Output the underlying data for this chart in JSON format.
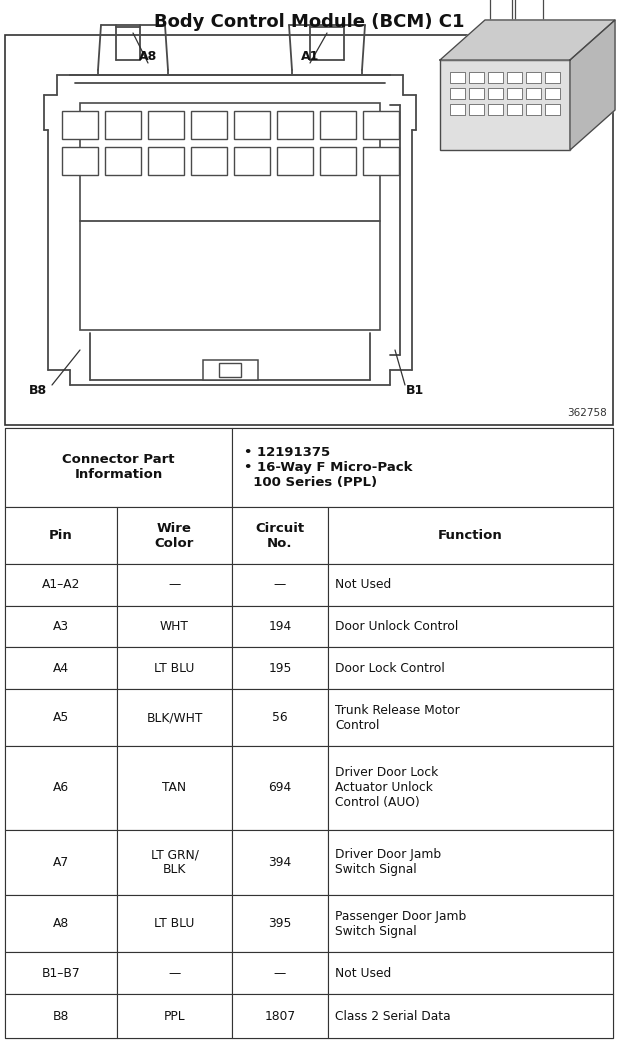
{
  "title": "Body Control Module (BCM) C1",
  "title_fontsize": 13,
  "title_fontweight": "bold",
  "background_color": "#ffffff",
  "ref_number": "362758",
  "connector_info_left": "Connector Part\nInformation",
  "connector_info_right": "• 12191375\n• 16-Way F Micro-Pack\n  100 Series (PPL)",
  "table_headers": [
    "Pin",
    "Wire\nColor",
    "Circuit\nNo.",
    "Function"
  ],
  "table_rows": [
    [
      "A1–A2",
      "—",
      "—",
      "Not Used"
    ],
    [
      "A3",
      "WHT",
      "194",
      "Door Unlock Control"
    ],
    [
      "A4",
      "LT BLU",
      "195",
      "Door Lock Control"
    ],
    [
      "A5",
      "BLK/WHT",
      "56",
      "Trunk Release Motor\nControl"
    ],
    [
      "A6",
      "TAN",
      "694",
      "Driver Door Lock\nActuator Unlock\nControl (AUO)"
    ],
    [
      "A7",
      "LT GRN/\nBLK",
      "394",
      "Driver Door Jamb\nSwitch Signal"
    ],
    [
      "A8",
      "LT BLU",
      "395",
      "Passenger Door Jamb\nSwitch Signal"
    ],
    [
      "B1–B7",
      "—",
      "—",
      "Not Used"
    ],
    [
      "B8",
      "PPL",
      "1807",
      "Class 2 Serial Data"
    ]
  ],
  "dc": "#4a4a4a",
  "lc": "#333333"
}
